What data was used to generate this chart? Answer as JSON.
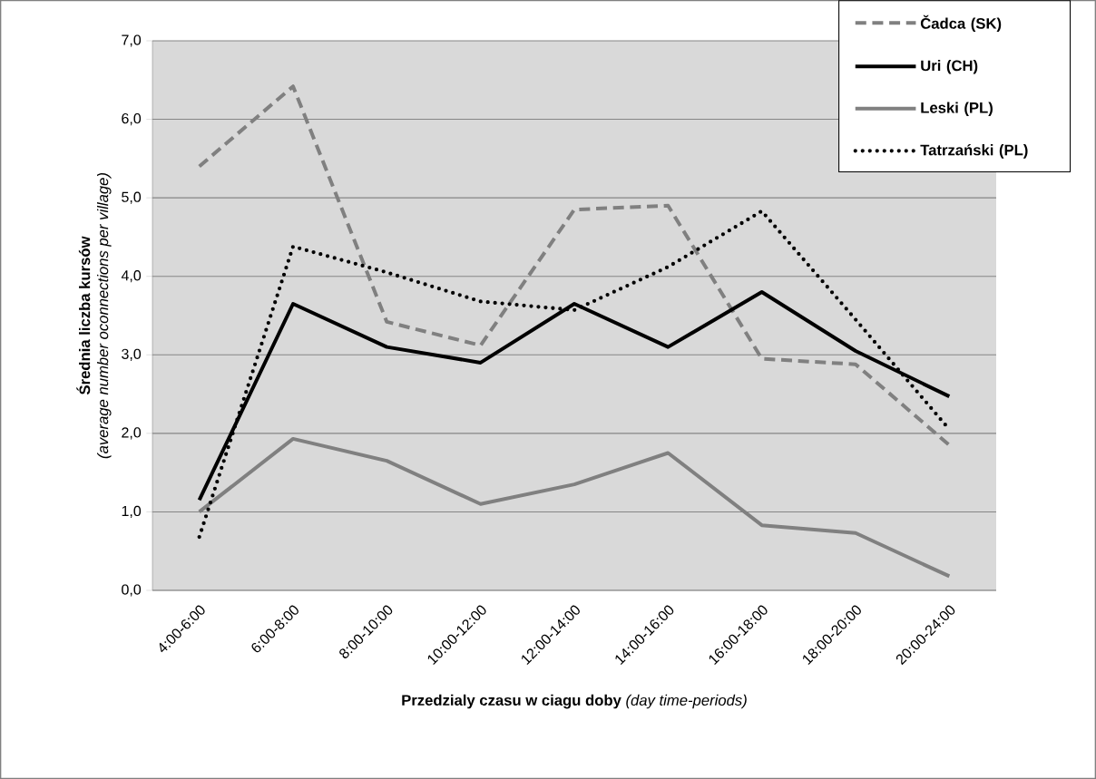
{
  "chart_data": {
    "type": "line",
    "xlabel": "**Przedzialy czasu w ciagu doby** *(day time-periods)*",
    "ylabel": "**Średnia liczba kursów**\n*(average number oconnections per village)*",
    "categories": [
      "4:00-6:00",
      "6:00-8:00",
      "8:00-10:00",
      "10:00-12:00",
      "12:00-14:00",
      "14:00-16:00",
      "16:00-18:00",
      "18:00-20:00",
      "20:00-24:00"
    ],
    "series": [
      {
        "name": "Čadca (SK)",
        "color": "#808080",
        "line_style": "dashed",
        "values": [
          5.4,
          6.42,
          3.42,
          3.12,
          4.85,
          4.9,
          2.95,
          2.88,
          1.85
        ]
      },
      {
        "name": "Uri (CH)",
        "color": "#000000",
        "line_style": "solid",
        "values": [
          1.15,
          3.65,
          3.1,
          2.9,
          3.65,
          3.1,
          3.8,
          3.05,
          2.47
        ]
      },
      {
        "name": "Leski (PL)",
        "color": "#808080",
        "line_style": "solid",
        "values": [
          1.0,
          1.93,
          1.65,
          1.1,
          1.35,
          1.75,
          0.83,
          0.73,
          0.18
        ]
      },
      {
        "name": "Tatrzański (PL)",
        "color": "#000000",
        "line_style": "dotted",
        "values": [
          0.68,
          4.38,
          4.05,
          3.68,
          3.57,
          4.12,
          4.83,
          3.45,
          2.05
        ]
      }
    ],
    "ylim": [
      0,
      7
    ],
    "yticks": [
      {
        "value": 0,
        "label": "0,0"
      },
      {
        "value": 1,
        "label": "1,0"
      },
      {
        "value": 2,
        "label": "2,0"
      },
      {
        "value": 3,
        "label": "3,0"
      },
      {
        "value": 4,
        "label": "4,0"
      },
      {
        "value": 5,
        "label": "5,0"
      },
      {
        "value": 6,
        "label": "6,0"
      },
      {
        "value": 7,
        "label": "7,0"
      }
    ],
    "grid": "y",
    "legend": "top right",
    "marker": "none"
  }
}
